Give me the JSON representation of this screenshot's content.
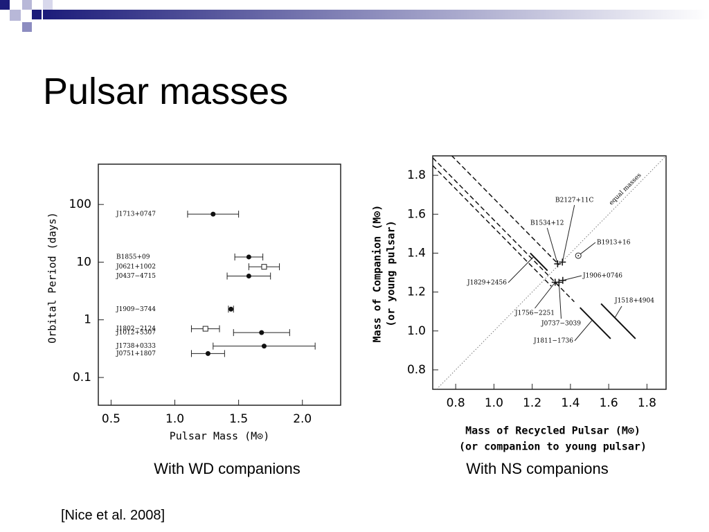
{
  "title": "Pulsar masses",
  "captions": [
    "With WD companions",
    "With NS companions"
  ],
  "citation": "[Nice et al. 2008]",
  "chart_data": [
    {
      "type": "errorbar",
      "xlabel": "Pulsar Mass (M⊙)",
      "ylabel": "Orbital Period (days)",
      "xlim": [
        0.4,
        2.3
      ],
      "ylim": [
        0.033,
        500
      ],
      "ylog": true,
      "xticks": [
        0.5,
        {
          "value": 1,
          "label": "1.0"
        },
        1.5,
        {
          "value": 2,
          "label": "2.0"
        }
      ],
      "yticks": [
        100,
        10,
        1,
        0.1
      ],
      "labels": [
        "J1713+0747",
        "B1855+09",
        "J0621+1002",
        "J0437−4715",
        "J1909−3744",
        "J1802−2124",
        "J1012+5307",
        "J1738+0333",
        "J0751+1807"
      ],
      "x": [
        1.3,
        1.58,
        1.7,
        1.58,
        1.44,
        1.24,
        1.68,
        1.7,
        1.26
      ],
      "xerr": [
        0.2,
        0.11,
        0.12,
        0.17,
        0.02,
        0.11,
        0.22,
        0.4,
        0.13
      ],
      "y": [
        68,
        12.3,
        8.3,
        5.74,
        1.53,
        0.7,
        0.6,
        0.35,
        0.26
      ],
      "markers": [
        "circle",
        "circle",
        "square",
        "circle",
        "circle",
        "square",
        "circle",
        "circle",
        "circle"
      ]
    },
    {
      "type": "mass-mass",
      "xlabel": "Mass of Recycled Pulsar (M⊙)",
      "xlabel2": "(or companion to young pulsar)",
      "ylabel": "Mass of Companion (M⊙)",
      "ylabel2": "(or young pulsar)",
      "diagonal_label": "equal masses",
      "xlim": [
        0.68,
        1.9
      ],
      "ylim": [
        0.7,
        1.9
      ],
      "xticks": [
        0.8,
        {
          "value": 1,
          "label": "1.0"
        },
        1.2,
        1.4,
        1.6,
        1.8
      ],
      "yticks": [
        0.8,
        {
          "value": 1,
          "label": "1.0"
        },
        1.2,
        1.4,
        1.6,
        1.8
      ],
      "labels": [
        "B2127+11C",
        "B1534+12",
        "B1913+16",
        "J1906+0746",
        "J1756−2251",
        "J0737−3039"
      ],
      "x": [
        1.358,
        1.333,
        1.441,
        1.36,
        1.32,
        1.34
      ],
      "y": [
        1.354,
        1.345,
        1.387,
        1.26,
        1.25,
        1.25
      ],
      "markers": [
        "cross",
        "cross",
        "dotcircle",
        "cross",
        "cross",
        "cross"
      ],
      "lines": [
        {
          "label": "J1829+2456",
          "total": 2.59,
          "xrange": [
            1.19,
            1.28
          ],
          "style": "solid"
        },
        {
          "label": "J1811−1736",
          "total": 2.57,
          "xrange": [
            1.45,
            1.61
          ],
          "style": "solid"
        },
        {
          "label": "J1518+4904",
          "total": 2.7,
          "xrange": [
            1.56,
            1.74
          ],
          "style": "solid"
        },
        {
          "total": 2.53,
          "xrange": [
            0.68,
            1.3
          ],
          "style": "dashed"
        },
        {
          "total": 2.57,
          "xrange": [
            0.68,
            1.42
          ],
          "style": "dashed"
        },
        {
          "total": 2.68,
          "xrange": [
            0.75,
            1.34
          ],
          "style": "dashed"
        }
      ]
    }
  ]
}
